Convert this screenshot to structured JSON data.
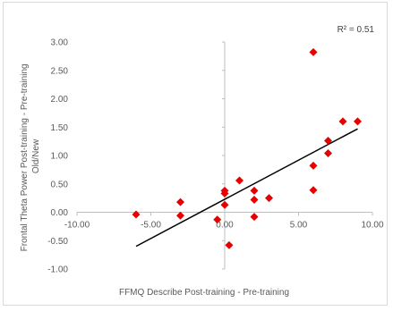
{
  "chart_data": {
    "type": "scatter",
    "title": "",
    "xlabel": "FFMQ Describe Post-training - Pre-training",
    "ylabel": "Frontal Theta Power Post-training - Pre-training Old/New",
    "ylabel_lines": [
      "Frontal Theta Power Post-training - Pre-training",
      "Old/New"
    ],
    "xlim": [
      -10,
      10
    ],
    "ylim": [
      -1,
      3
    ],
    "xticks": [
      -10,
      -5,
      0,
      5,
      10
    ],
    "xtick_labels": [
      "-10.00",
      "-5.00",
      "0.00",
      "5.00",
      "10.00"
    ],
    "yticks": [
      -1,
      -0.5,
      0,
      0.5,
      1,
      1.5,
      2,
      2.5,
      3
    ],
    "ytick_labels": [
      "-1.00",
      "-0.50",
      "0.00",
      "0.50",
      "1.00",
      "1.50",
      "2.00",
      "2.50",
      "3.00"
    ],
    "annotation": "R² = 0.51",
    "grid": false,
    "legend": "none",
    "marker_color": "#e60000",
    "trendline_color": "#000000",
    "points": [
      {
        "x": -6,
        "y": -0.04
      },
      {
        "x": -3,
        "y": 0.18
      },
      {
        "x": -3,
        "y": -0.06
      },
      {
        "x": -0.5,
        "y": -0.13
      },
      {
        "x": 0,
        "y": 0.38
      },
      {
        "x": 0,
        "y": 0.33
      },
      {
        "x": 0,
        "y": 0.13
      },
      {
        "x": 0.3,
        "y": -0.58
      },
      {
        "x": 1,
        "y": 0.56
      },
      {
        "x": 2,
        "y": 0.38
      },
      {
        "x": 2,
        "y": 0.22
      },
      {
        "x": 2,
        "y": -0.08
      },
      {
        "x": 3,
        "y": 0.25
      },
      {
        "x": 6,
        "y": 2.82
      },
      {
        "x": 6,
        "y": 0.82
      },
      {
        "x": 6,
        "y": 0.39
      },
      {
        "x": 7,
        "y": 1.26
      },
      {
        "x": 7,
        "y": 1.04
      },
      {
        "x": 8,
        "y": 1.6
      },
      {
        "x": 9,
        "y": 1.6
      }
    ],
    "trendline": {
      "x": [
        -6,
        9
      ],
      "y": [
        -0.6,
        1.47
      ]
    }
  }
}
